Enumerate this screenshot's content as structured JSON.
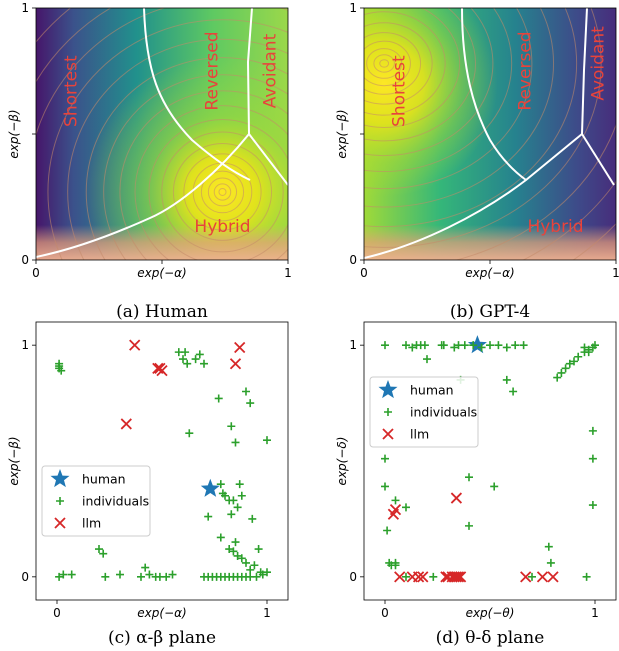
{
  "colors": {
    "individuals": "#2ca02c",
    "llm": "#d62728",
    "human": "#1f77b4",
    "region_text": "#e8433b"
  },
  "chart_data": [
    {
      "id": "a",
      "type": "heatmap",
      "caption": "(a) Human",
      "xlabel": "exp(−α)",
      "ylabel": "exp(−β)",
      "xlim": [
        0,
        1
      ],
      "ylim": [
        0,
        1
      ],
      "xticks": [
        "0",
        "",
        "1"
      ],
      "yticks": [
        "0",
        "",
        "1"
      ],
      "regions": [
        {
          "label": "Shortest",
          "x": 0.14,
          "y": 0.67
        },
        {
          "label": "Reversed",
          "x": 0.7,
          "y": 0.75
        },
        {
          "label": "Avoidant",
          "x": 0.93,
          "y": 0.75
        },
        {
          "label": "Hybrid",
          "x": 0.74,
          "y": 0.13
        }
      ],
      "peak": [
        0.74,
        0.27
      ]
    },
    {
      "id": "b",
      "type": "heatmap",
      "caption": "(b) GPT-4",
      "xlabel": "exp(−α)",
      "ylabel": "exp(−β)",
      "xlim": [
        0,
        1
      ],
      "ylim": [
        0,
        1
      ],
      "xticks": [
        "0",
        "",
        "1"
      ],
      "yticks": [
        "0",
        "",
        "1"
      ],
      "regions": [
        {
          "label": "Shortest",
          "x": 0.14,
          "y": 0.67
        },
        {
          "label": "Reversed",
          "x": 0.64,
          "y": 0.75
        },
        {
          "label": "Avoidant",
          "x": 0.93,
          "y": 0.78
        },
        {
          "label": "Hybrid",
          "x": 0.76,
          "y": 0.13
        }
      ],
      "peak": [
        0.08,
        0.78
      ]
    },
    {
      "id": "c",
      "type": "scatter",
      "caption": "(c) α-β plane",
      "xlabel": "exp(−α)",
      "ylabel": "exp(−β)",
      "xlim": [
        -0.1,
        1.1
      ],
      "ylim": [
        -0.1,
        1.1
      ],
      "xticks": [
        "0",
        "1"
      ],
      "yticks": [
        "0",
        "1"
      ],
      "legend": {
        "placement": "center-left",
        "entries": [
          "human",
          "individuals",
          "llm"
        ]
      },
      "series": [
        {
          "name": "human",
          "marker": "star",
          "points": [
            [
              0.73,
              0.38
            ]
          ]
        },
        {
          "name": "individuals",
          "marker": "plus",
          "points": [
            [
              0.01,
              0.92
            ],
            [
              0.01,
              0.91
            ],
            [
              0.01,
              0.9
            ],
            [
              0.02,
              0.89
            ],
            [
              0.01,
              0.0
            ],
            [
              0.03,
              0.01
            ],
            [
              0.07,
              0.01
            ],
            [
              0.2,
              0.12
            ],
            [
              0.22,
              0.1
            ],
            [
              0.23,
              0.0
            ],
            [
              0.3,
              0.01
            ],
            [
              0.4,
              0.0
            ],
            [
              0.42,
              0.04
            ],
            [
              0.44,
              0.01
            ],
            [
              0.47,
              0.0
            ],
            [
              0.49,
              0.0
            ],
            [
              0.52,
              0.0
            ],
            [
              0.55,
              0.01
            ],
            [
              0.58,
              0.97
            ],
            [
              0.6,
              0.94
            ],
            [
              0.61,
              0.97
            ],
            [
              0.62,
              0.92
            ],
            [
              0.63,
              0.62
            ],
            [
              0.66,
              0.94
            ],
            [
              0.68,
              0.96
            ],
            [
              0.7,
              0.92
            ],
            [
              0.7,
              0.0
            ],
            [
              0.72,
              0.0
            ],
            [
              0.74,
              0.0
            ],
            [
              0.76,
              0.0
            ],
            [
              0.78,
              0.0
            ],
            [
              0.8,
              0.0
            ],
            [
              0.82,
              0.0
            ],
            [
              0.84,
              0.0
            ],
            [
              0.86,
              0.0
            ],
            [
              0.88,
              0.0
            ],
            [
              0.9,
              0.0
            ],
            [
              0.92,
              0.0
            ],
            [
              0.95,
              0.0
            ],
            [
              0.98,
              0.01
            ],
            [
              0.77,
              0.77
            ],
            [
              0.78,
              0.4
            ],
            [
              0.79,
              0.36
            ],
            [
              0.8,
              0.35
            ],
            [
              0.82,
              0.33
            ],
            [
              0.83,
              0.27
            ],
            [
              0.72,
              0.26
            ],
            [
              0.84,
              0.33
            ],
            [
              0.86,
              0.3
            ],
            [
              0.83,
              0.65
            ],
            [
              0.85,
              0.58
            ],
            [
              0.87,
              0.4
            ],
            [
              0.88,
              0.35
            ],
            [
              0.9,
              0.8
            ],
            [
              0.92,
              0.75
            ],
            [
              0.93,
              0.25
            ],
            [
              0.96,
              0.12
            ],
            [
              1.0,
              0.59
            ],
            [
              0.78,
              0.17
            ],
            [
              0.82,
              0.12
            ],
            [
              0.84,
              0.11
            ],
            [
              0.86,
              0.09
            ],
            [
              0.88,
              0.08
            ],
            [
              0.9,
              0.06
            ],
            [
              0.92,
              0.03
            ],
            [
              0.94,
              0.05
            ],
            [
              0.97,
              0.02
            ],
            [
              1.0,
              0.02
            ],
            [
              0.85,
              0.15
            ]
          ]
        },
        {
          "name": "llm",
          "marker": "x",
          "points": [
            [
              0.37,
              1.0
            ],
            [
              0.48,
              0.9
            ],
            [
              0.5,
              0.89
            ],
            [
              0.49,
              0.9
            ],
            [
              0.33,
              0.66
            ],
            [
              0.87,
              0.99
            ],
            [
              0.85,
              0.92
            ]
          ]
        }
      ]
    },
    {
      "id": "d",
      "type": "scatter",
      "caption": "(d) θ-δ plane",
      "xlabel": "exp(−θ)",
      "ylabel": "exp(−δ)",
      "xlim": [
        -0.1,
        1.1
      ],
      "ylim": [
        -0.1,
        1.1
      ],
      "xticks": [
        "0",
        "1"
      ],
      "yticks": [
        "0",
        "1"
      ],
      "legend": {
        "placement": "upper-left",
        "entries": [
          "human",
          "individuals",
          "llm"
        ]
      },
      "series": [
        {
          "name": "human",
          "marker": "star",
          "points": [
            [
              0.44,
              1.0
            ]
          ]
        },
        {
          "name": "individuals",
          "marker": "plus",
          "points": [
            [
              0.0,
              1.0
            ],
            [
              0.1,
              1.0
            ],
            [
              0.13,
              0.99
            ],
            [
              0.15,
              1.0
            ],
            [
              0.17,
              1.0
            ],
            [
              0.19,
              1.0
            ],
            [
              0.27,
              1.0
            ],
            [
              0.28,
              1.0
            ],
            [
              0.33,
              0.99
            ],
            [
              0.35,
              1.0
            ],
            [
              0.38,
              1.0
            ],
            [
              0.42,
              1.0
            ],
            [
              0.46,
              0.99
            ],
            [
              0.5,
              1.0
            ],
            [
              0.54,
              1.0
            ],
            [
              0.58,
              0.99
            ],
            [
              0.62,
              1.0
            ],
            [
              0.66,
              1.0
            ],
            [
              0.2,
              0.94
            ],
            [
              0.36,
              0.85
            ],
            [
              0.58,
              0.85
            ],
            [
              0.61,
              0.8
            ],
            [
              0.82,
              0.86
            ],
            [
              0.84,
              0.88
            ],
            [
              0.86,
              0.9
            ],
            [
              0.88,
              0.92
            ],
            [
              0.9,
              0.93
            ],
            [
              0.92,
              0.95
            ],
            [
              0.95,
              0.97
            ],
            [
              0.97,
              0.98
            ],
            [
              0.99,
              0.99
            ],
            [
              1.0,
              1.0
            ],
            [
              0.97,
              0.97
            ],
            [
              0.95,
              0.99
            ],
            [
              0.99,
              0.63
            ],
            [
              0.99,
              0.51
            ],
            [
              0.99,
              0.31
            ],
            [
              0.0,
              0.51
            ],
            [
              0.0,
              0.39
            ],
            [
              0.01,
              0.2
            ],
            [
              0.05,
              0.33
            ],
            [
              0.1,
              0.3
            ],
            [
              0.4,
              0.43
            ],
            [
              0.52,
              0.39
            ],
            [
              0.4,
              0.22
            ],
            [
              0.02,
              0.06
            ],
            [
              0.03,
              0.05
            ],
            [
              0.05,
              0.06
            ],
            [
              0.05,
              0.05
            ],
            [
              0.1,
              0.0
            ],
            [
              0.23,
              0.0
            ],
            [
              0.7,
              0.0
            ],
            [
              0.78,
              0.13
            ],
            [
              0.79,
              0.06
            ],
            [
              0.96,
              0.0
            ]
          ]
        },
        {
          "name": "llm",
          "marker": "x",
          "points": [
            [
              0.04,
              0.27
            ],
            [
              0.05,
              0.29
            ],
            [
              0.07,
              0.0
            ],
            [
              0.13,
              0.0
            ],
            [
              0.16,
              0.0
            ],
            [
              0.18,
              0.0
            ],
            [
              0.29,
              0.0
            ],
            [
              0.3,
              0.0
            ],
            [
              0.32,
              0.0
            ],
            [
              0.33,
              0.0
            ],
            [
              0.34,
              0.0
            ],
            [
              0.35,
              0.0
            ],
            [
              0.36,
              0.0
            ],
            [
              0.75,
              0.0
            ],
            [
              0.8,
              0.0
            ],
            [
              0.34,
              0.34
            ],
            [
              0.67,
              0.0
            ]
          ]
        }
      ]
    }
  ]
}
